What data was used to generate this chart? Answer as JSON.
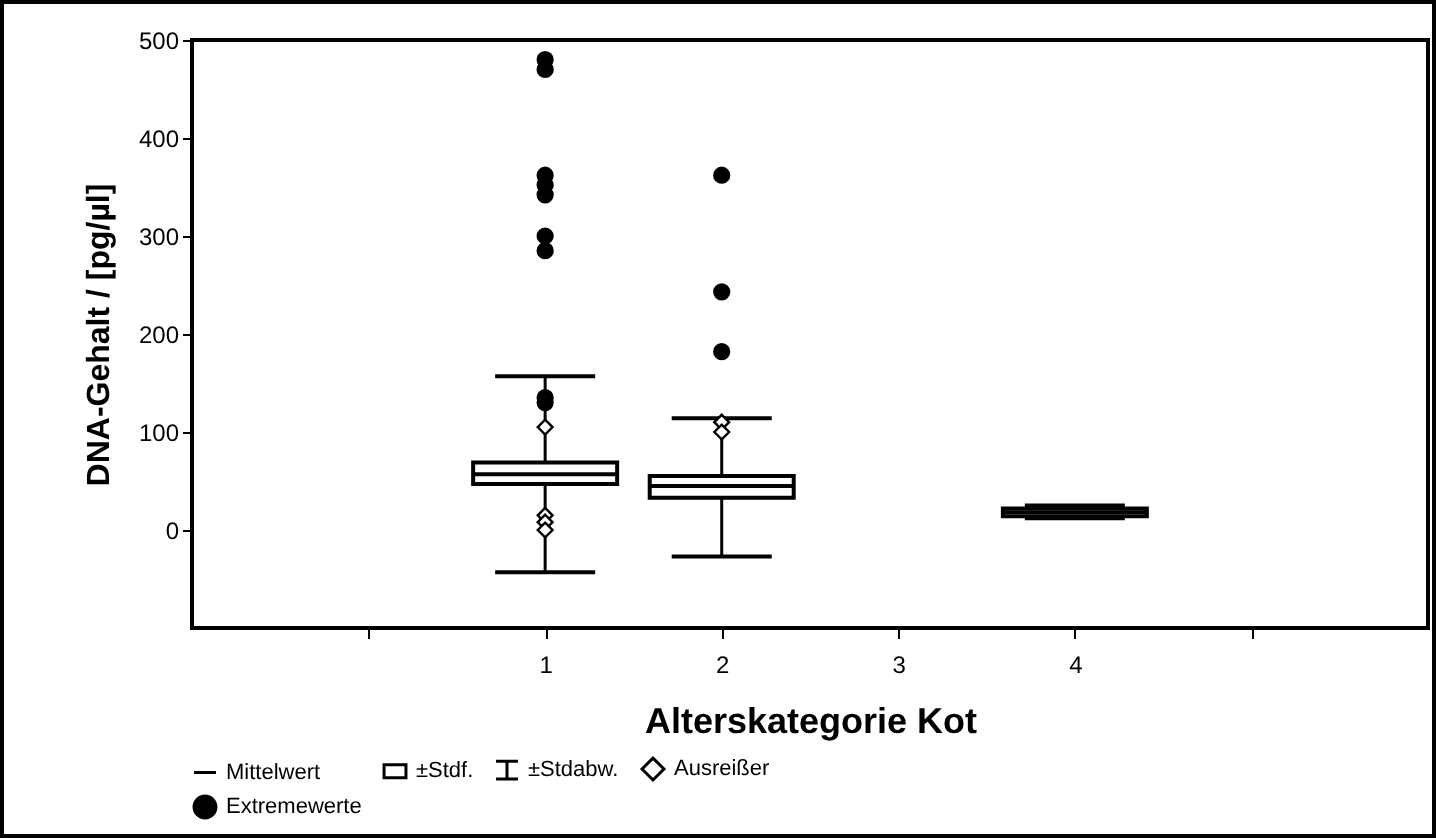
{
  "chart_data": {
    "type": "box",
    "xlabel": "Alterskategorie Kot",
    "ylabel": "DNA-Gehalt / [pg/µl]",
    "categories": [
      null,
      "1",
      "2",
      "3",
      "4",
      null
    ],
    "ylim": [
      -100,
      500
    ],
    "yticks": [
      0,
      100,
      200,
      300,
      400,
      500
    ],
    "grid": false,
    "legend": "bottom",
    "annotations": [
      "Mittelwert",
      "±Stdabw."
    ],
    "series": [
      {
        "type": "box",
        "name": "±Stdf.",
        "color": "#ffffff",
        "boxes": [
          null,
          {
            "low": -43,
            "q1": 47,
            "median": 57,
            "q3": 69,
            "high": 157
          },
          {
            "low": -27,
            "q1": 33,
            "median": 45,
            "q3": 55,
            "high": 114
          },
          null,
          {
            "low": 12,
            "q1": 14,
            "median": 18,
            "q3": 22,
            "high": 25
          },
          null
        ]
      },
      {
        "type": "scatter",
        "name": "Ausreißer",
        "marker": "diamond",
        "color": "#ffffff",
        "x": [
          "1",
          "1",
          "1",
          "1",
          "2",
          "2"
        ],
        "values": [
          105,
          15,
          8,
          0,
          110,
          100
        ]
      },
      {
        "type": "scatter",
        "name": "Extremewerte",
        "marker": "circle",
        "color": "#000000",
        "x": [
          "1",
          "1",
          "1",
          "1",
          "1",
          "1",
          "1",
          "1",
          "1",
          "2",
          "2",
          "2"
        ],
        "values": [
          480,
          470,
          362,
          352,
          342,
          300,
          285,
          135,
          130,
          362,
          243,
          182
        ]
      }
    ]
  }
}
